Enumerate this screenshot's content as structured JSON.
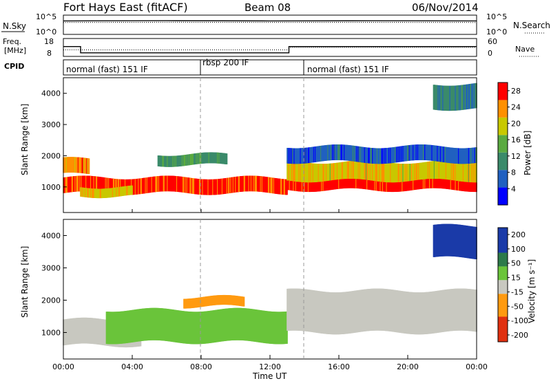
{
  "header": {
    "station": "Fort Hays East (fitACF)",
    "beam": "Beam 08",
    "date": "06/Nov/2014"
  },
  "noise_panel": {
    "left_label": "N.Sky",
    "right_label": "N.Search",
    "left_ticks": [
      "10^5",
      "10^0"
    ],
    "right_ticks": [
      "10^5",
      "10^0"
    ]
  },
  "freq_panel": {
    "left_label_1": "Freq.",
    "left_label_2": "[MHz]",
    "right_label": "Nave",
    "left_ticks": [
      "18",
      "8"
    ],
    "right_ticks": [
      "60",
      "0"
    ]
  },
  "cpid_panel": {
    "label": "CPID",
    "segments": [
      "normal (fast) 151 IF",
      "rbsp 200 IF",
      "normal (fast) 151 IF"
    ]
  },
  "power_panel": {
    "ylabel": "Slant Range [km]",
    "yticks": [
      "1000",
      "2000",
      "3000",
      "4000"
    ],
    "colorbar_title": "Power [dB]",
    "colorbar_ticks": [
      "4",
      "8",
      "12",
      "16",
      "20",
      "24",
      "28"
    ]
  },
  "velocity_panel": {
    "ylabel": "Slant Range [km]",
    "yticks": [
      "1000",
      "2000",
      "3000",
      "4000"
    ],
    "colorbar_title": "Velocity [m s⁻¹]",
    "colorbar_ticks": [
      "200",
      "100",
      "50",
      "15",
      "-15",
      "-50",
      "-100",
      "-200"
    ]
  },
  "xaxis": {
    "label": "Time UT",
    "ticks": [
      "00:00",
      "04:00",
      "08:00",
      "12:00",
      "16:00",
      "20:00",
      "00:00"
    ]
  },
  "chart_data": [
    {
      "type": "line",
      "panel": "noise",
      "series": [
        {
          "name": "N.Sky",
          "x_hours": [
            0,
            6,
            12,
            18,
            24
          ],
          "values": [
            10000,
            12000,
            10000,
            11000,
            10000
          ]
        },
        {
          "name": "N.Search",
          "x_hours": [
            0,
            6,
            12,
            18,
            24
          ],
          "values": [
            3000,
            3500,
            3200,
            3400,
            3000
          ]
        }
      ]
    },
    {
      "type": "line",
      "panel": "freq_nave",
      "series": [
        {
          "name": "Freq.",
          "x_hours": [
            0,
            1.0,
            1.0,
            13.1,
            13.1,
            24
          ],
          "values": [
            13.5,
            13.5,
            10,
            10,
            13.5,
            13.5
          ]
        },
        {
          "name": "Nave",
          "x_hours": [
            0,
            13.1,
            13.1,
            24
          ],
          "values": [
            22,
            22,
            30,
            30
          ]
        }
      ],
      "ylim_freq": [
        8,
        18
      ],
      "ylim_nave": [
        0,
        60
      ]
    },
    {
      "type": "table",
      "panel": "cpid",
      "segments": [
        {
          "label": "normal (fast) 151 IF",
          "start_hour": 0,
          "end_hour": 8
        },
        {
          "label": "rbsp 200 IF",
          "start_hour": 8,
          "end_hour": 14
        },
        {
          "label": "normal (fast) 151 IF",
          "start_hour": 14,
          "end_hour": 24
        }
      ]
    },
    {
      "type": "heatmap",
      "panel": "power",
      "xlim_hours": [
        0,
        24
      ],
      "ylim_km": [
        180,
        4500
      ],
      "colorbar": {
        "min": 0,
        "max": 30,
        "ticks": [
          4,
          8,
          12,
          16,
          20,
          24,
          28
        ],
        "colors": [
          "#0000ff",
          "#2060c0",
          "#3a8a6a",
          "#5aaa40",
          "#c8c800",
          "#ff9000",
          "#ff0000"
        ]
      },
      "regions": [
        {
          "t0": 0.0,
          "t1": 13.0,
          "r0": 800,
          "r1": 1300,
          "value": 27
        },
        {
          "t0": 0.0,
          "t1": 1.5,
          "r0": 1400,
          "r1": 1900,
          "value": 24
        },
        {
          "t0": 1.0,
          "t1": 4.0,
          "r0": 700,
          "r1": 1000,
          "value": 20
        },
        {
          "t0": 5.5,
          "t1": 9.5,
          "r0": 1700,
          "r1": 2050,
          "value": 12
        },
        {
          "t0": 13.0,
          "t1": 24.0,
          "r0": 1000,
          "r1": 1800,
          "value": 20
        },
        {
          "t0": 13.0,
          "t1": 24.0,
          "r0": 900,
          "r1": 1200,
          "value": 28
        },
        {
          "t0": 13.0,
          "t1": 24.0,
          "r0": 1800,
          "r1": 2300,
          "value": 6
        },
        {
          "t0": 21.5,
          "t1": 24.0,
          "r0": 3500,
          "r1": 4300,
          "value": 10
        }
      ]
    },
    {
      "type": "heatmap",
      "panel": "velocity",
      "xlim_hours": [
        0,
        24
      ],
      "ylim_km": [
        180,
        4500
      ],
      "colorbar": {
        "min": -250,
        "max": 250,
        "ticks": [
          200,
          100,
          50,
          15,
          -15,
          -50,
          -100,
          -200
        ]
      },
      "regions": [
        {
          "t0": 0.0,
          "t1": 4.5,
          "r0": 600,
          "r1": 1400,
          "value": 0
        },
        {
          "t0": 2.5,
          "t1": 13.0,
          "r0": 700,
          "r1": 1700,
          "value": 30
        },
        {
          "t0": 7.0,
          "t1": 10.5,
          "r0": 1800,
          "r1": 2100,
          "value": -60
        },
        {
          "t0": 13.0,
          "t1": 24.0,
          "r0": 1000,
          "r1": 2300,
          "value": 0
        },
        {
          "t0": 21.5,
          "t1": 24.0,
          "r0": 3300,
          "r1": 4300,
          "value": 180
        }
      ]
    }
  ]
}
